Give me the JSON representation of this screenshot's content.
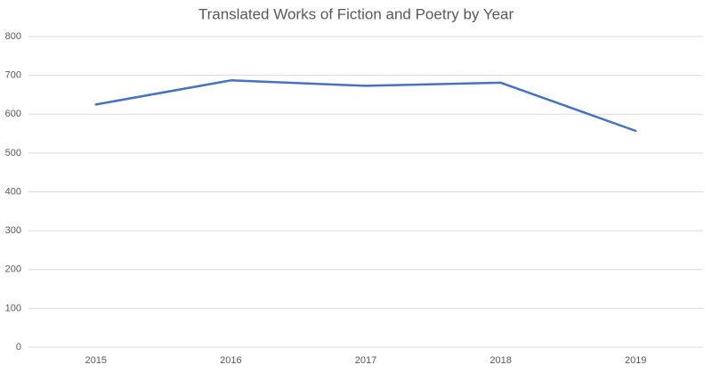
{
  "chart_data": {
    "type": "line",
    "title": "Translated Works of Fiction and Poetry by Year",
    "categories": [
      "2015",
      "2016",
      "2017",
      "2018",
      "2019"
    ],
    "values": [
      625,
      687,
      673,
      681,
      557
    ],
    "color": "#4472c4",
    "ylim": [
      0,
      800
    ],
    "yticks": [
      0,
      100,
      200,
      300,
      400,
      500,
      600,
      700,
      800
    ],
    "grid": true
  }
}
